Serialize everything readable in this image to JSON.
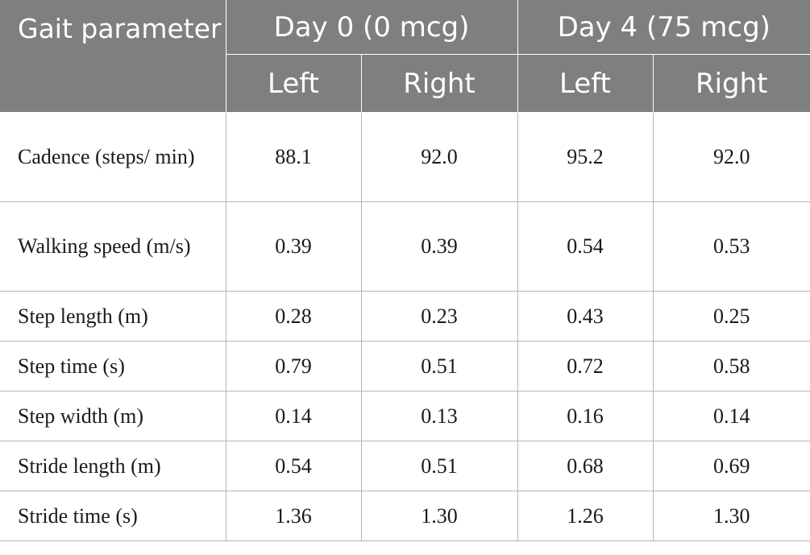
{
  "header": {
    "param_label": "Gait parameter",
    "groups": [
      {
        "label": "Day 0 (0 mcg)"
      },
      {
        "label": "Day 4 (75 mcg)"
      }
    ],
    "sides": [
      "Left",
      "Right",
      "Left",
      "Right"
    ]
  },
  "rows": [
    {
      "parameter": "Cadence (steps/ min)",
      "values": [
        "88.1",
        "92.0",
        "95.2",
        "92.0"
      ]
    },
    {
      "parameter": "Walking speed (m/s)",
      "values": [
        "0.39",
        "0.39",
        "0.54",
        "0.53"
      ]
    },
    {
      "parameter": "Step length (m)",
      "values": [
        "0.28",
        "0.23",
        "0.43",
        "0.25"
      ]
    },
    {
      "parameter": "Step time (s)",
      "values": [
        "0.79",
        "0.51",
        "0.72",
        "0.58"
      ]
    },
    {
      "parameter": "Step width (m)",
      "values": [
        "0.14",
        "0.13",
        "0.16",
        "0.14"
      ]
    },
    {
      "parameter": "Stride length (m)",
      "values": [
        "0.54",
        "0.51",
        "0.68",
        "0.69"
      ]
    },
    {
      "parameter": "Stride time (s)",
      "values": [
        "1.36",
        "1.30",
        "1.26",
        "1.30"
      ]
    }
  ],
  "colors": {
    "header_bg": "#7d807e",
    "header_text": "#ffffff",
    "grid": "#b5b5b5"
  }
}
